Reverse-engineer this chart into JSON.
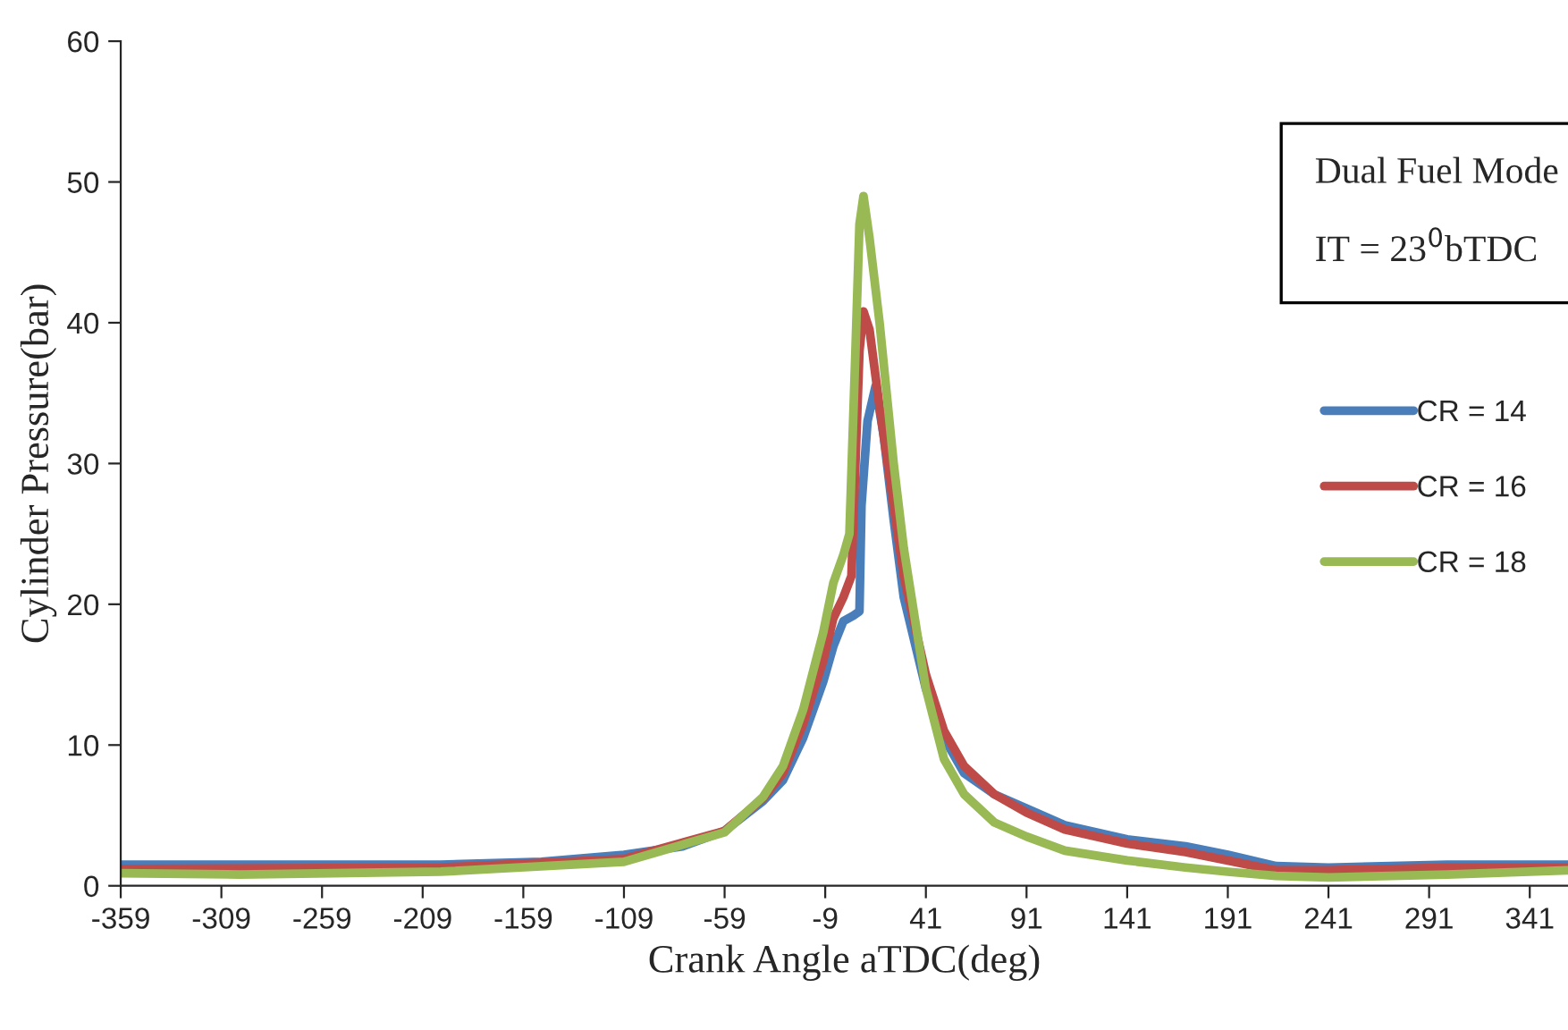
{
  "chart_data": {
    "type": "line",
    "xlabel": "Crank Angle aTDC(deg)",
    "ylabel": "Cylinder Pressure(bar)",
    "annotations": [
      "Dual Fuel Mode",
      "IT = 23$^{0}$bTDC"
    ],
    "xlim": [
      -359,
      360
    ],
    "xticks": [
      -359,
      -309,
      -259,
      -209,
      -159,
      -109,
      -59,
      -9,
      41,
      91,
      141,
      191,
      241,
      291,
      341
    ],
    "ylim": [
      0,
      60
    ],
    "yticks": [
      0,
      10,
      20,
      30,
      40,
      50,
      60
    ],
    "grid": false,
    "legend": "right",
    "marker": "none",
    "line_style": "solid",
    "series": [
      {
        "name": "CR = 14",
        "color": "#4a7ebb",
        "x": [
          -359,
          -300,
          -200,
          -150,
          -109,
          -80,
          -59,
          -40,
          -30,
          -20,
          -10,
          -5,
          0,
          5,
          8,
          9,
          12,
          16,
          20,
          25,
          30,
          41,
          50,
          60,
          75,
          91,
          110,
          141,
          170,
          191,
          215,
          241,
          300,
          360
        ],
        "values": [
          1.5,
          1.5,
          1.5,
          1.7,
          2.2,
          2.8,
          3.9,
          6.0,
          7.5,
          10.5,
          14.5,
          17,
          18.8,
          19.2,
          19.5,
          27,
          33,
          35.5,
          32,
          26,
          20.5,
          14,
          10.5,
          8,
          6.5,
          5.5,
          4.3,
          3.3,
          2.8,
          2.2,
          1.4,
          1.3,
          1.5,
          1.5
        ]
      },
      {
        "name": "CR = 16",
        "color": "#be4b48",
        "x": [
          -359,
          -200,
          -109,
          -59,
          -40,
          -30,
          -20,
          -10,
          -5,
          0,
          4,
          6,
          8,
          10,
          13,
          18,
          25,
          30,
          41,
          50,
          60,
          75,
          91,
          110,
          141,
          170,
          191,
          215,
          241,
          300,
          360
        ],
        "values": [
          1.2,
          1.3,
          1.9,
          3.9,
          6.2,
          8,
          11.5,
          16,
          19,
          20.5,
          22,
          30,
          38,
          40.8,
          39.5,
          34,
          27,
          22,
          15,
          11,
          8.5,
          6.5,
          5.2,
          4,
          3.0,
          2.4,
          1.8,
          1.1,
          1.1,
          1.3,
          1.3
        ]
      },
      {
        "name": "CR = 18",
        "color": "#98b954",
        "x": [
          -359,
          -300,
          -200,
          -109,
          -59,
          -40,
          -30,
          -20,
          -10,
          -5,
          0,
          3,
          6,
          8,
          10,
          13,
          18,
          25,
          30,
          41,
          50,
          60,
          75,
          91,
          110,
          141,
          170,
          191,
          215,
          241,
          300,
          360
        ],
        "values": [
          0.9,
          0.8,
          1.0,
          1.7,
          3.8,
          6.3,
          8.5,
          12.5,
          18,
          21.5,
          23.5,
          25,
          38,
          47,
          49,
          46,
          40,
          30,
          24,
          14,
          9,
          6.5,
          4.5,
          3.5,
          2.5,
          1.8,
          1.3,
          1.0,
          0.7,
          0.6,
          0.8,
          1.1
        ]
      }
    ]
  }
}
